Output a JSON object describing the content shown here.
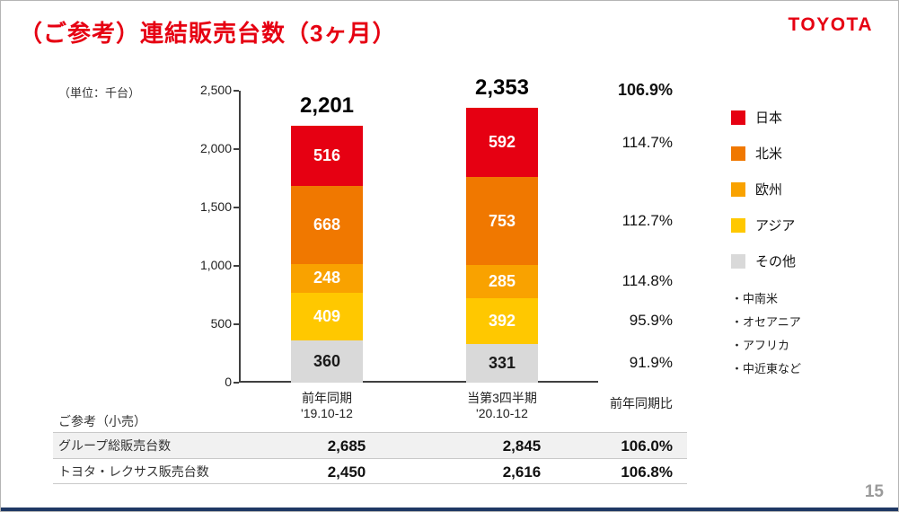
{
  "slide": {
    "title": "（ご参考）連結販売台数（3ヶ月）",
    "logo": "TOYOTA",
    "unit_label": "（単位：千台）",
    "page_number": "15",
    "brand_color": "#e60012",
    "footer_bar_color": "#1f3864"
  },
  "chart_data": {
    "type": "bar",
    "stacked": true,
    "title": "連結販売台数（3ヶ月）",
    "unit": "千台",
    "ylim": [
      0,
      2500
    ],
    "yticks": [
      0,
      500,
      1000,
      1500,
      2000,
      2500
    ],
    "ytick_labels": [
      "0",
      "500",
      "1,000",
      "1,500",
      "2,000",
      "2,500"
    ],
    "categories": [
      [
        "前年同期",
        "'19.10-12"
      ],
      [
        "当第3四半期",
        "'20.10-12"
      ]
    ],
    "series": [
      {
        "name": "日本",
        "color": "#e60012",
        "text_color": "#ffffff",
        "values": [
          516,
          592
        ],
        "yoy": "114.7%"
      },
      {
        "name": "北米",
        "color": "#f07800",
        "text_color": "#ffffff",
        "values": [
          668,
          753
        ],
        "yoy": "112.7%"
      },
      {
        "name": "欧州",
        "color": "#f9a200",
        "text_color": "#ffffff",
        "values": [
          248,
          285
        ],
        "yoy": "114.8%"
      },
      {
        "name": "アジア",
        "color": "#ffc800",
        "text_color": "#ffffff",
        "values": [
          409,
          392
        ],
        "yoy": "95.9%"
      },
      {
        "name": "その他",
        "color": "#d9d9d9",
        "text_color": "#1a1a1a",
        "values": [
          360,
          331
        ],
        "yoy": "91.9%"
      }
    ],
    "totals": [
      "2,201",
      "2,353"
    ],
    "total_yoy": "106.9%",
    "yoy_header": "前年同期比",
    "legend_notes": [
      "・中南米",
      "・オセアニア",
      "・アフリカ",
      "・中近東など"
    ],
    "legend_position": "right",
    "grid": false
  },
  "retail_table": {
    "note": "ご参考（小売）",
    "rows": [
      {
        "label": "グループ総販売台数",
        "values": [
          "2,685",
          "2,845",
          "106.0%"
        ]
      },
      {
        "label": "トヨタ・レクサス販売台数",
        "values": [
          "2,450",
          "2,616",
          "106.8%"
        ]
      }
    ]
  }
}
